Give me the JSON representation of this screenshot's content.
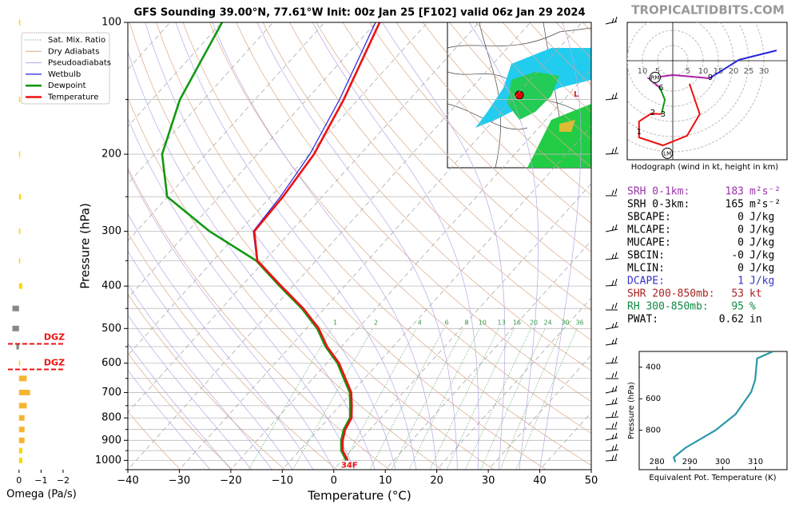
{
  "chart_data": {
    "type": "skewt",
    "title": "GFS Sounding 39.00°N, 77.61°W Init: 00z Jan 25 [F102] valid 06z Jan 29 2024",
    "watermark": "TROPICALTIDBITS.COM",
    "xlabel": "Temperature (°C)",
    "ylabel": "Pressure (hPa)",
    "xlim": [
      -40,
      50
    ],
    "xticks": [
      {
        "value": -40,
        "label": "−40"
      },
      {
        "value": -30,
        "label": "−30"
      },
      {
        "value": -20,
        "label": "−20"
      },
      {
        "value": -10,
        "label": "−10"
      },
      0,
      10,
      20,
      30,
      40,
      50
    ],
    "ylim": [
      1050,
      100
    ],
    "yticks": [
      100,
      200,
      300,
      400,
      500,
      600,
      700,
      800,
      900,
      1000
    ],
    "yminorticks": [
      150,
      250,
      350,
      450,
      550,
      650,
      750,
      850,
      950,
      1050
    ],
    "log_y": true,
    "grid": true,
    "legend_position": "upper left",
    "background_lines": [
      {
        "name": "Sat. Mix. Ratio",
        "color": "#3a9a50"
      },
      {
        "name": "Dry Adiabats",
        "color": "#d9a98a"
      },
      {
        "name": "Pseudoadiabats",
        "color": "#b4a8e8"
      }
    ],
    "mixing_ratio_labels": [
      1,
      2,
      4,
      6,
      8,
      10,
      13,
      16,
      20,
      24,
      30,
      36
    ],
    "pressure": [
      1000,
      950,
      900,
      850,
      800,
      750,
      700,
      650,
      600,
      550,
      500,
      450,
      400,
      350,
      300,
      250,
      200,
      150,
      100
    ],
    "series": [
      {
        "name": "Wetbulb",
        "color": "#2222dd",
        "values": [
          0.9,
          -1.7,
          -3.5,
          -4.9,
          -5.7,
          -7.8,
          -10.2,
          -13.8,
          -17.7,
          -22.9,
          -27.7,
          -34.2,
          -42.4,
          -51.5,
          -57.3,
          -58.1,
          -59.8,
          -63.6,
          -70.1
        ]
      },
      {
        "name": "Dewpoint",
        "color": "#119911",
        "values": [
          0.8,
          -1.9,
          -3.7,
          -5.1,
          -5.9,
          -8.0,
          -10.4,
          -14.0,
          -17.9,
          -23.1,
          -27.9,
          -34.4,
          -42.6,
          -51.6,
          -65.8,
          -80.1,
          -88.5,
          -94.6,
          -99.9
        ]
      },
      {
        "name": "Temperature",
        "color": "#ee1111",
        "values": [
          1.1,
          -1.6,
          -3.4,
          -4.8,
          -5.6,
          -7.7,
          -10.1,
          -13.7,
          -17.6,
          -22.8,
          -27.6,
          -34.1,
          -42.3,
          -51.4,
          -57.1,
          -57.6,
          -59.0,
          -62.8,
          -69.3
        ]
      }
    ],
    "surface_label": "34F",
    "omega": {
      "xlabel": "Omega (Pa/s)",
      "xlim": [
        0.5,
        -2.4
      ],
      "xticks": [
        0,
        {
          "value": -1,
          "label": "−1"
        },
        {
          "value": -2,
          "label": "−2"
        }
      ],
      "pressure": [
        100,
        150,
        200,
        250,
        300,
        350,
        400,
        450,
        500,
        550,
        600,
        650,
        700,
        750,
        800,
        850,
        900,
        950,
        1000
      ],
      "values": [
        -0.03,
        -0.02,
        -0.03,
        -0.08,
        -0.06,
        -0.05,
        -0.15,
        0.3,
        0.3,
        0.12,
        -0.05,
        -0.35,
        -0.5,
        -0.35,
        -0.25,
        -0.25,
        -0.25,
        -0.15,
        -0.15
      ],
      "colors": [
        "#ffd700",
        "#ffd700",
        "#ffd700",
        "#ffd700",
        "#ffd700",
        "#ffd700",
        "#ffd700",
        "#888888",
        "#888888",
        "#888888",
        "#ffd700",
        "#f5b531",
        "#f5b531",
        "#f5b531",
        "#f5b531",
        "#f5b531",
        "#f5b531",
        "#ffd700",
        "#ffd700"
      ],
      "dgz": [
        {
          "pressure": 542,
          "label": "DGZ"
        },
        {
          "pressure": 620,
          "label": "DGZ"
        }
      ]
    },
    "hodograph": {
      "title": "Hodograph (wind in kt, height in km)",
      "rings": [
        5,
        10,
        15,
        20,
        25,
        30
      ],
      "left_labels": [
        10,
        5
      ],
      "segments": [
        {
          "color": "#ee1111",
          "u": [
            5.5,
            8.9,
            4.7,
            -3.2,
            -11.1,
            -11.1,
            -7.1,
            -3.7
          ],
          "v": [
            -7.6,
            -17.6,
            -24.7,
            -27.9,
            -25.3,
            -20.0,
            -17.4,
            -17.6
          ]
        },
        {
          "color": "#119911",
          "u": [
            -3.7,
            -2.6,
            -4.2
          ],
          "v": [
            -17.6,
            -12.9,
            -8.9
          ]
        },
        {
          "color": "#aa22aa",
          "u": [
            -4.2,
            -7.9,
            0,
            12.1
          ],
          "v": [
            -8.9,
            -5.8,
            -4.7,
            -5.8
          ]
        },
        {
          "color": "#2222dd",
          "u": [
            12.1,
            21.8,
            34.2
          ],
          "v": [
            -5.8,
            0.3,
            3.4
          ]
        }
      ],
      "heights": {
        "labels": [
          "1",
          "2",
          "3",
          "6",
          "9"
        ],
        "u": [
          -11.1,
          -6.6,
          -3.2,
          -3.9,
          12.4
        ],
        "v": [
          -23.4,
          -17.1,
          -17.6,
          -8.9,
          -5.5
        ]
      },
      "motions": {
        "labels": [
          "RM",
          "LM"
        ],
        "u": [
          -5.8,
          -1.8
        ],
        "v": [
          -5.5,
          -30.5
        ]
      }
    },
    "stats": [
      {
        "label": "SRH 0-1km:",
        "value": "183",
        "unit": "m²s⁻²",
        "color": "#9933aa"
      },
      {
        "label": "SRH 0-3km:",
        "value": "165",
        "unit": "m²s⁻²",
        "color": "#000000"
      },
      {
        "label": "SBCAPE:",
        "value": "0",
        "unit": "J/kg",
        "color": "#000000"
      },
      {
        "label": "MLCAPE:",
        "value": "0",
        "unit": "J/kg",
        "color": "#000000"
      },
      {
        "label": "MUCAPE:",
        "value": "0",
        "unit": "J/kg",
        "color": "#000000"
      },
      {
        "label": "SBCIN:",
        "value": "-0",
        "unit": "J/kg",
        "color": "#000000"
      },
      {
        "label": "MLCIN:",
        "value": "0",
        "unit": "J/kg",
        "color": "#000000"
      },
      {
        "label": "DCAPE:",
        "value": "1",
        "unit": "J/kg",
        "color": "#3333cc"
      },
      {
        "label": "SHR 200-850mb:",
        "value": "53",
        "unit": "kt",
        "color": "#aa2222"
      },
      {
        "label": "RH 300-850mb:",
        "value": "95",
        "unit": "%",
        "color": "#118844"
      },
      {
        "label": "PWAT:",
        "value": "0.62",
        "unit": "in",
        "color": "#000000"
      }
    ],
    "theta_e": {
      "xlabel": "Equivalent Pot. Temperature (K)",
      "ylabel": "Pressure (hPa)",
      "color": "#2a97a8",
      "xlim": [
        274.6,
        319.6
      ],
      "xticks": [
        280,
        290,
        300,
        310
      ],
      "ylim": [
        1050,
        300
      ],
      "yticks": [
        400,
        600,
        800
      ],
      "pressure": [
        1002,
        972,
        911,
        800,
        699,
        557,
        481,
        344,
        300
      ],
      "values": [
        285.6,
        285.1,
        288.7,
        297.8,
        303.9,
        308.7,
        309.9,
        310.5,
        315.3
      ]
    }
  }
}
